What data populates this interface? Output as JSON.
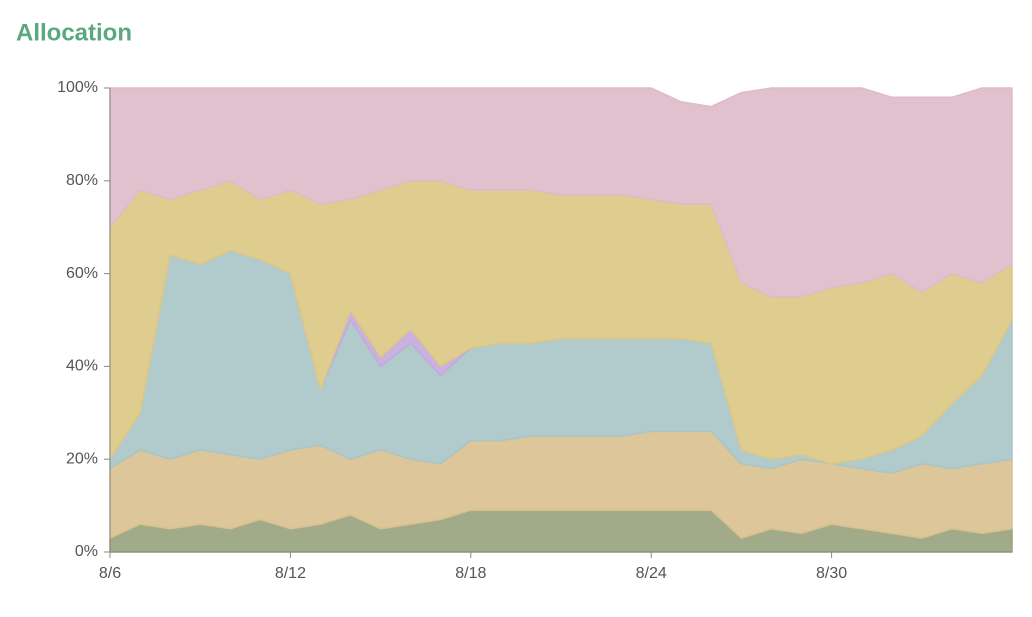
{
  "chart_data": {
    "type": "stacked-area",
    "title": "Allocation",
    "categories": [
      "8/6",
      null,
      null,
      null,
      null,
      null,
      "8/12",
      null,
      null,
      null,
      null,
      null,
      "8/18",
      null,
      null,
      null,
      null,
      null,
      "8/24",
      null,
      null,
      null,
      null,
      null,
      "8/30",
      null,
      null,
      null,
      null,
      null,
      null
    ],
    "series": [
      {
        "color": "#97a27c",
        "values": [
          3,
          6,
          5,
          6,
          5,
          7,
          5,
          6,
          8,
          5,
          6,
          7,
          9,
          9,
          9,
          9,
          9,
          9,
          9,
          9,
          9,
          3,
          5,
          4,
          6,
          5,
          4,
          3,
          5,
          4,
          5
        ]
      },
      {
        "color": "#d8c08f",
        "values": [
          15,
          16,
          15,
          16,
          16,
          13,
          17,
          17,
          12,
          17,
          14,
          12,
          15,
          15,
          16,
          16,
          16,
          16,
          17,
          17,
          17,
          16,
          13,
          16,
          13,
          13,
          13,
          16,
          13,
          15,
          15
        ]
      },
      {
        "color": "#a9c5c7",
        "values": [
          2,
          8,
          44,
          40,
          44,
          43,
          38,
          12,
          30,
          18,
          25,
          19,
          20,
          21,
          20,
          21,
          21,
          21,
          20,
          20,
          19,
          3,
          2,
          1,
          0,
          2,
          5,
          6,
          14,
          19,
          30
        ]
      },
      {
        "color": "#c3a9dd",
        "values": [
          0,
          0,
          0,
          0,
          0,
          0,
          0,
          0,
          2,
          2,
          3,
          2,
          0,
          0,
          0,
          0,
          0,
          0,
          0,
          0,
          0,
          0,
          0,
          0,
          0,
          0,
          0,
          0,
          0,
          0,
          0
        ]
      },
      {
        "color": "#dcc884",
        "values": [
          50,
          48,
          12,
          16,
          15,
          13,
          18,
          40,
          24,
          36,
          32,
          40,
          34,
          33,
          33,
          31,
          31,
          31,
          30,
          29,
          30,
          36,
          35,
          34,
          38,
          38,
          38,
          31,
          28,
          20,
          12
        ]
      },
      {
        "color": "#dfbac9",
        "values": [
          30,
          22,
          24,
          22,
          20,
          24,
          22,
          25,
          24,
          22,
          20,
          20,
          22,
          22,
          22,
          23,
          23,
          23,
          24,
          22,
          21,
          41,
          45,
          45,
          43,
          42,
          38,
          42,
          38,
          42,
          38
        ]
      }
    ],
    "ylim": [
      0,
      100
    ],
    "yticks": [
      {
        "value": 0,
        "label": "0%"
      },
      {
        "value": 20,
        "label": "20%"
      },
      {
        "value": 40,
        "label": "40%"
      },
      {
        "value": 60,
        "label": "60%"
      },
      {
        "value": 80,
        "label": "80%"
      },
      {
        "value": 100,
        "label": "100%"
      }
    ]
  }
}
